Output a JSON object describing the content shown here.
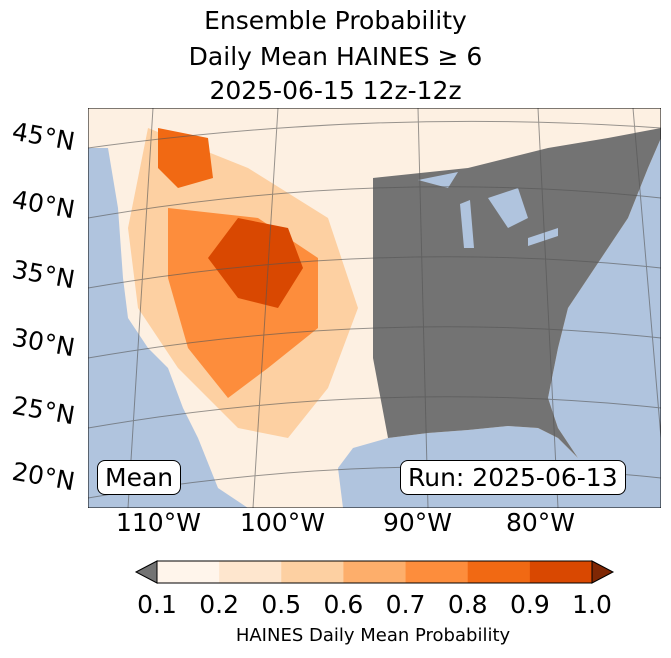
{
  "title": {
    "line1": "Ensemble Probability",
    "line2": "Daily Mean HAINES ≥ 6",
    "line3": "2025-06-15 12z-12z"
  },
  "map": {
    "lat_labels": [
      "45°N",
      "40°N",
      "35°N",
      "30°N",
      "25°N",
      "20°N"
    ],
    "lon_labels": [
      "110°W",
      "100°W",
      "90°W",
      "80°W"
    ],
    "mean_label": "Mean",
    "run_label": "Run: 2025-06-13",
    "colors": {
      "ocean": "#b0c4de",
      "below": "#737373",
      "above": "#7f2704"
    }
  },
  "colorbar": {
    "ticks": [
      "0.1",
      "0.2",
      "0.5",
      "0.6",
      "0.7",
      "0.8",
      "0.9",
      "1.0"
    ],
    "colors": [
      "#fff5eb",
      "#fee6ce",
      "#fdd0a2",
      "#fdae6b",
      "#fd8d3c",
      "#f16913",
      "#d94801"
    ],
    "label": "HAINES Daily Mean Probability"
  }
}
